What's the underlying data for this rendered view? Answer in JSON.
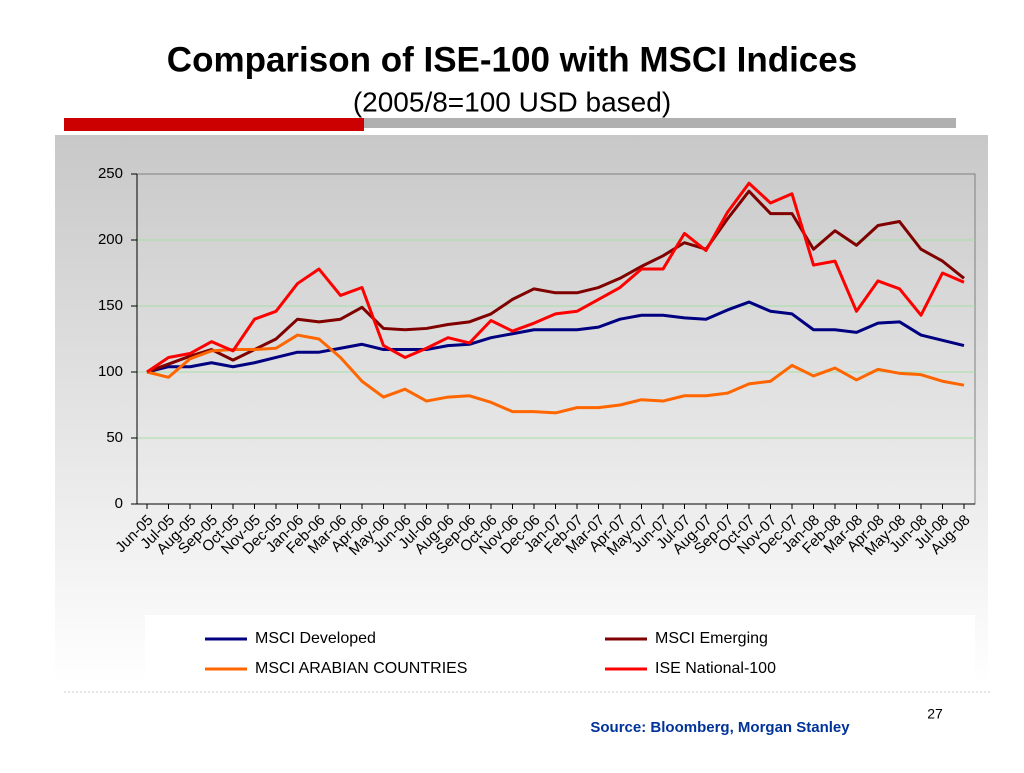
{
  "slide": {
    "title": "Comparison of ISE-100 with MSCI Indices",
    "subtitle": "(2005/8=100 USD based)",
    "source": "Source: Bloomberg, Morgan Stanley",
    "page_number": "27"
  },
  "chart_data": {
    "type": "line",
    "categories": [
      "Jun-05",
      "Jul-05",
      "Aug-05",
      "Sep-05",
      "Oct-05",
      "Nov-05",
      "Dec-05",
      "Jan-06",
      "Feb-06",
      "Mar-06",
      "Apr-06",
      "May-06",
      "Jun-06",
      "Jul-06",
      "Aug-06",
      "Sep-06",
      "Oct-06",
      "Nov-06",
      "Dec-06",
      "Jan-07",
      "Feb-07",
      "Mar-07",
      "Apr-07",
      "May-07",
      "Jun-07",
      "Jul-07",
      "Aug-07",
      "Sep-07",
      "Oct-07",
      "Nov-07",
      "Dec-07",
      "Jan-08",
      "Feb-08",
      "Mar-08",
      "Apr-08",
      "May-08",
      "Jun-08",
      "Jul-08",
      "Aug-08"
    ],
    "series": [
      {
        "name": "MSCI Developed",
        "color": "#000080",
        "values": [
          100,
          104,
          104,
          107,
          104,
          107,
          111,
          115,
          115,
          118,
          121,
          117,
          117,
          117,
          120,
          121,
          126,
          129,
          132,
          132,
          132,
          134,
          140,
          143,
          143,
          141,
          140,
          147,
          153,
          146,
          144,
          132,
          132,
          130,
          137,
          138,
          128,
          124,
          120
        ]
      },
      {
        "name": "MSCI Emerging",
        "color": "#800000",
        "values": [
          100,
          106,
          112,
          117,
          109,
          117,
          125,
          140,
          138,
          140,
          149,
          133,
          132,
          133,
          136,
          138,
          144,
          155,
          163,
          160,
          160,
          164,
          171,
          180,
          188,
          198,
          193,
          216,
          237,
          220,
          220,
          193,
          207,
          196,
          211,
          214,
          193,
          184,
          171
        ]
      },
      {
        "name": "MSCI ARABIAN COUNTRIES",
        "color": "#ff6600",
        "values": [
          100,
          96,
          110,
          116,
          117,
          117,
          118,
          128,
          125,
          111,
          93,
          81,
          87,
          78,
          81,
          82,
          77,
          70,
          70,
          69,
          73,
          73,
          75,
          79,
          78,
          82,
          82,
          84,
          91,
          93,
          105,
          97,
          103,
          94,
          102,
          99,
          98,
          93,
          90
        ]
      },
      {
        "name": "ISE National-100",
        "color": "#ff0000",
        "values": [
          100,
          111,
          114,
          123,
          116,
          140,
          146,
          167,
          178,
          158,
          164,
          120,
          111,
          118,
          126,
          122,
          139,
          131,
          137,
          144,
          146,
          155,
          164,
          178,
          178,
          205,
          192,
          221,
          243,
          228,
          235,
          181,
          184,
          146,
          169,
          163,
          143,
          175,
          168
        ]
      }
    ],
    "ylim": [
      0,
      250
    ],
    "yticks": [
      0,
      50,
      100,
      150,
      200,
      250
    ],
    "grid": true
  }
}
